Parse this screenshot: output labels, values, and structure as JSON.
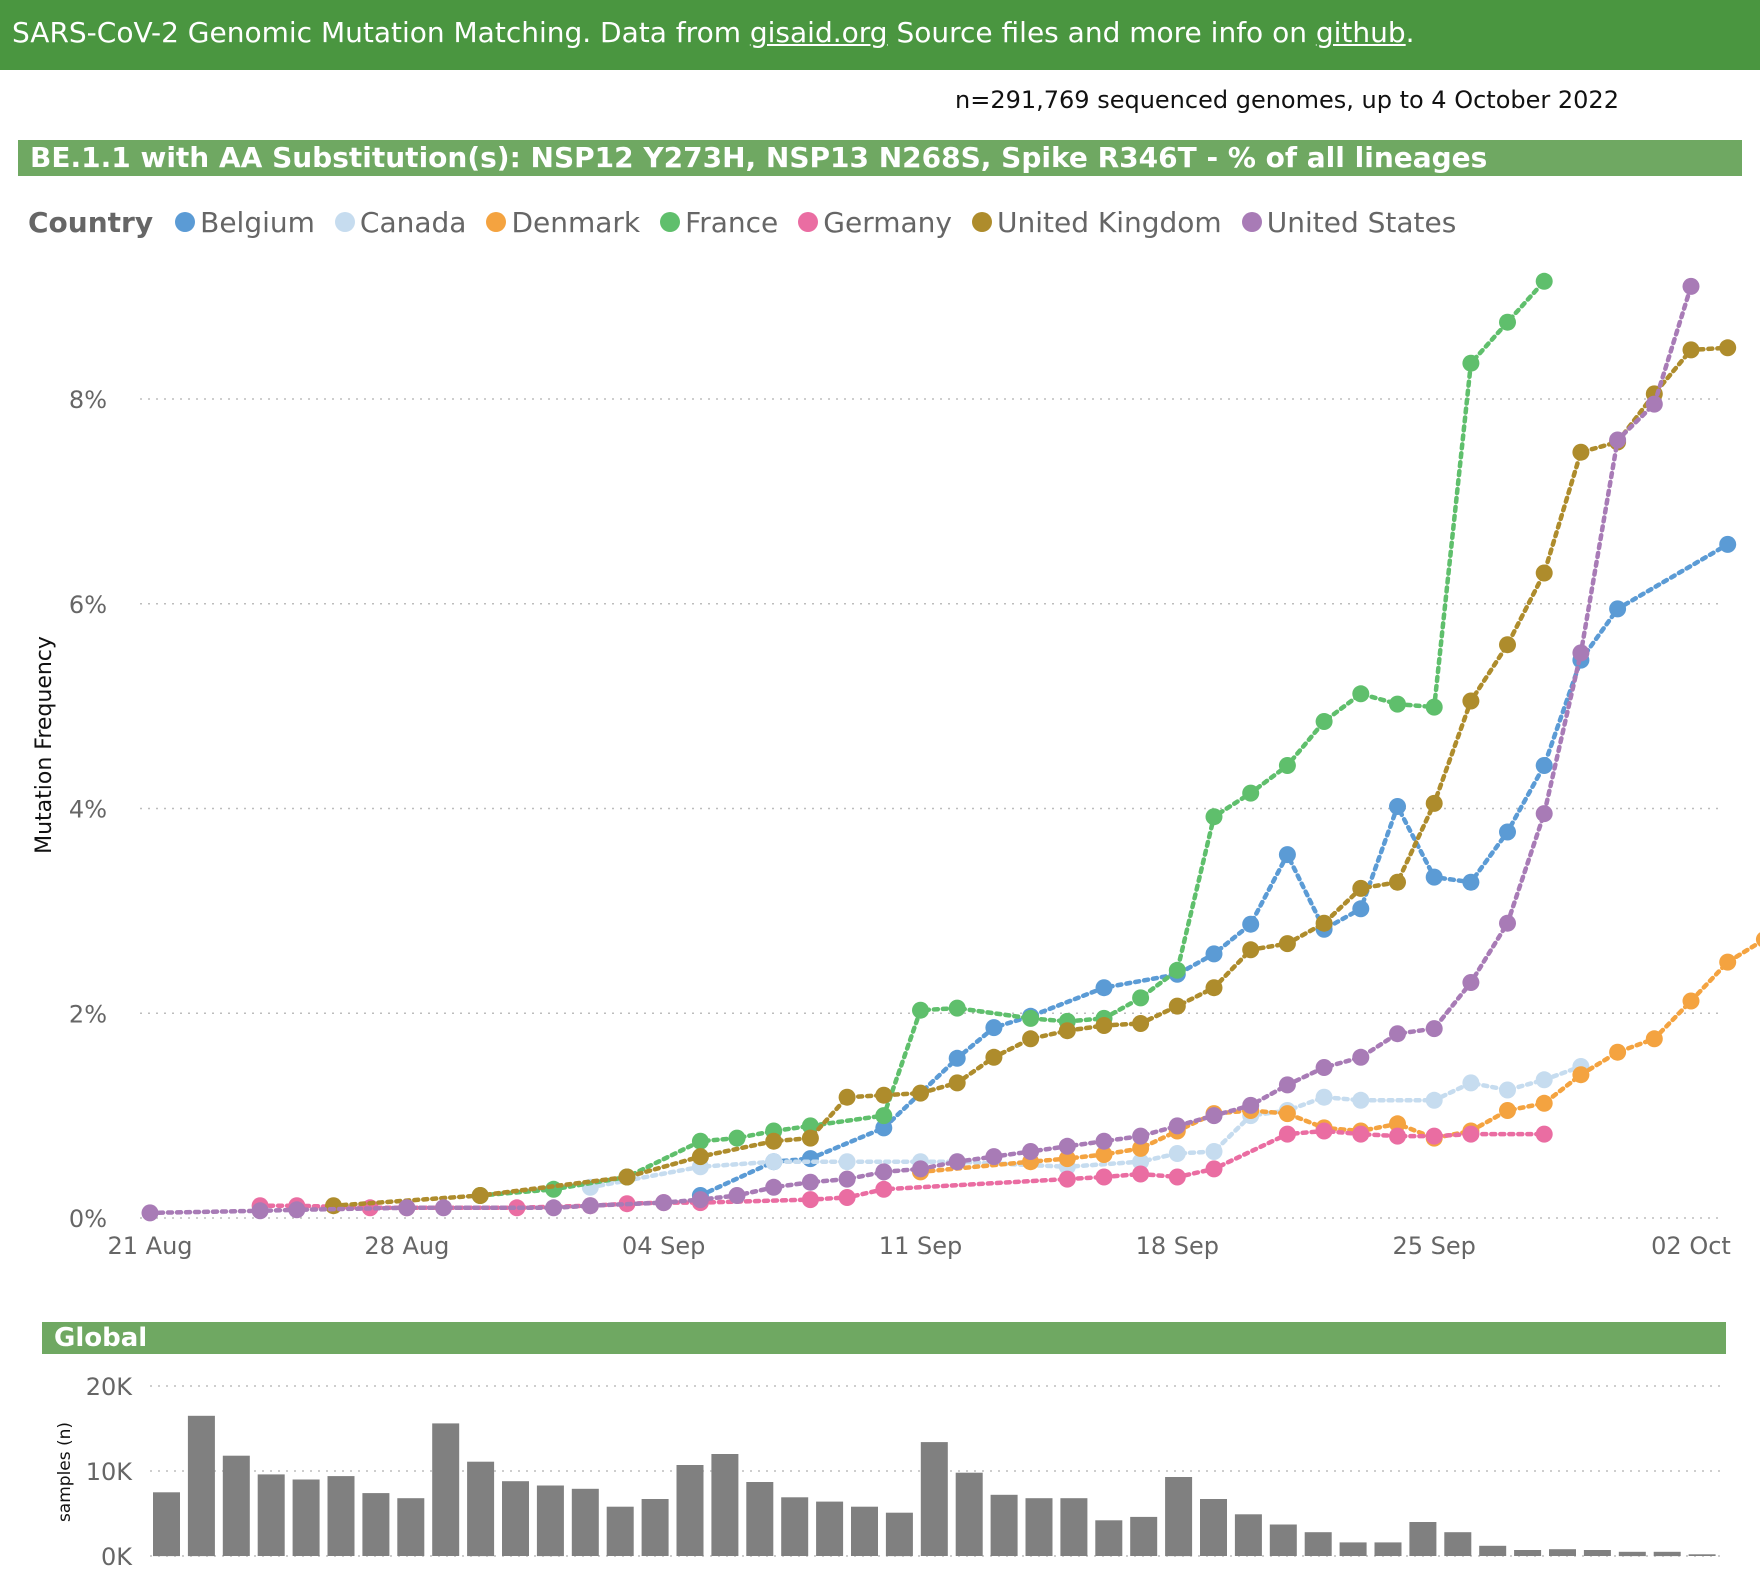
{
  "header": {
    "title_prefix": "SARS-CoV-2 Genomic Mutation Matching. Data from ",
    "gisaid_link": "gisaid.org",
    "title_middle": " Source files and more info on ",
    "github_link": "github",
    "title_suffix": "."
  },
  "summary": "n=291,769 sequenced genomes, up to 4 October 2022",
  "colors": {
    "header_bg": "#4a9640",
    "band_bg": "#6fa862",
    "bar": "#808080"
  },
  "chart_data": [
    {
      "type": "line",
      "title": "BE.1.1 with AA Substitution(s): NSP12 Y273H, NSP13 N268S, Spike R346T - % of all lineages",
      "legend_title": "Country",
      "legend_placement": "top-left",
      "ylabel": "Mutation Frequency",
      "yticks": [
        "0%",
        "2%",
        "4%",
        "6%",
        "8%"
      ],
      "ytick_values": [
        0,
        2,
        4,
        6,
        8
      ],
      "ylim": [
        0,
        9.5
      ],
      "xlim": [
        0,
        44
      ],
      "x_origin_date": "21 Aug",
      "xticks": [
        {
          "x": 0,
          "label": "21 Aug"
        },
        {
          "x": 7,
          "label": "28 Aug"
        },
        {
          "x": 14,
          "label": "04 Sep"
        },
        {
          "x": 21,
          "label": "11 Sep"
        },
        {
          "x": 28,
          "label": "18 Sep"
        },
        {
          "x": 35,
          "label": "25 Sep"
        },
        {
          "x": 42,
          "label": "02 Oct"
        }
      ],
      "series": [
        {
          "name": "Belgium",
          "color": "#5b9bd5",
          "x": [
            15,
            17,
            18,
            20,
            22,
            23,
            24,
            26,
            28,
            29,
            30,
            31,
            32,
            33,
            34,
            35,
            36,
            37,
            38,
            39,
            40,
            43
          ],
          "y": [
            0.22,
            0.55,
            0.58,
            0.88,
            1.56,
            1.86,
            1.97,
            2.25,
            2.38,
            2.58,
            2.87,
            3.55,
            2.82,
            3.02,
            4.02,
            3.33,
            3.28,
            3.77,
            4.42,
            5.45,
            5.95,
            6.58
          ]
        },
        {
          "name": "Canada",
          "color": "#c6dcef",
          "x": [
            12,
            15,
            17,
            19,
            21,
            22,
            25,
            27,
            28,
            29,
            30,
            31,
            32,
            33,
            35,
            36,
            37,
            38,
            39
          ],
          "y": [
            0.3,
            0.5,
            0.55,
            0.55,
            0.55,
            0.55,
            0.5,
            0.55,
            0.63,
            0.65,
            1.0,
            1.05,
            1.18,
            1.15,
            1.15,
            1.32,
            1.25,
            1.35,
            1.48
          ]
        },
        {
          "name": "Denmark",
          "color": "#f4a340",
          "x": [
            21,
            24,
            25,
            26,
            27,
            28,
            29,
            30,
            31,
            32,
            33,
            34,
            35,
            36,
            37,
            38,
            39,
            40,
            41,
            42,
            43,
            44
          ],
          "y": [
            0.45,
            0.55,
            0.58,
            0.62,
            0.68,
            0.85,
            1.02,
            1.05,
            1.02,
            0.88,
            0.85,
            0.92,
            0.78,
            0.85,
            1.05,
            1.12,
            1.4,
            1.62,
            1.75,
            2.12,
            2.5,
            2.72
          ]
        },
        {
          "name": "France",
          "color": "#5fbf6c",
          "x": [
            9,
            11,
            13,
            15,
            16,
            17,
            18,
            20,
            21,
            22,
            24,
            25,
            26,
            27,
            28,
            29,
            30,
            31,
            32,
            33,
            34,
            35,
            36,
            37,
            38
          ],
          "y": [
            0.22,
            0.28,
            0.4,
            0.75,
            0.78,
            0.85,
            0.9,
            1.0,
            2.03,
            2.05,
            1.95,
            1.92,
            1.95,
            2.15,
            2.42,
            3.92,
            4.15,
            4.42,
            4.85,
            5.12,
            5.02,
            4.99,
            8.35,
            8.75,
            9.15
          ]
        },
        {
          "name": "Germany",
          "color": "#ea6da2",
          "x": [
            3,
            4,
            6,
            7,
            10,
            12,
            13,
            14,
            15,
            18,
            19,
            20,
            25,
            26,
            27,
            28,
            29,
            31,
            32,
            33,
            34,
            35,
            36,
            38
          ],
          "y": [
            0.12,
            0.12,
            0.1,
            0.1,
            0.1,
            0.12,
            0.14,
            0.15,
            0.15,
            0.18,
            0.2,
            0.28,
            0.38,
            0.4,
            0.43,
            0.4,
            0.48,
            0.82,
            0.85,
            0.82,
            0.8,
            0.8,
            0.82,
            0.82
          ]
        },
        {
          "name": "United Kingdom",
          "color": "#ae8c2c",
          "x": [
            5,
            9,
            13,
            15,
            17,
            18,
            19,
            20,
            21,
            22,
            23,
            24,
            25,
            26,
            27,
            28,
            29,
            30,
            31,
            32,
            33,
            34,
            35,
            36,
            37,
            38,
            39,
            40,
            41,
            42,
            43
          ],
          "y": [
            0.12,
            0.22,
            0.4,
            0.6,
            0.75,
            0.78,
            1.18,
            1.2,
            1.22,
            1.32,
            1.57,
            1.75,
            1.83,
            1.88,
            1.9,
            2.07,
            2.25,
            2.62,
            2.68,
            2.88,
            3.22,
            3.28,
            4.05,
            5.05,
            5.6,
            6.3,
            7.48,
            7.58,
            8.05,
            8.48,
            8.5
          ]
        },
        {
          "name": "United States",
          "color": "#a87bb6",
          "x": [
            0,
            3,
            4,
            7,
            8,
            11,
            12,
            14,
            15,
            16,
            17,
            18,
            19,
            20,
            21,
            22,
            23,
            24,
            25,
            26,
            27,
            28,
            29,
            30,
            31,
            32,
            33,
            34,
            35,
            36,
            37,
            38,
            39,
            40,
            41,
            42
          ],
          "y": [
            0.05,
            0.07,
            0.08,
            0.1,
            0.1,
            0.1,
            0.12,
            0.15,
            0.18,
            0.22,
            0.3,
            0.35,
            0.38,
            0.45,
            0.48,
            0.55,
            0.6,
            0.65,
            0.7,
            0.75,
            0.8,
            0.9,
            1.0,
            1.1,
            1.3,
            1.47,
            1.57,
            1.8,
            1.85,
            2.3,
            2.88,
            3.95,
            5.52,
            7.6,
            7.95,
            9.1
          ]
        }
      ]
    },
    {
      "type": "bar",
      "title": "Global",
      "ylabel": "samples (n)",
      "yticks": [
        "0K",
        "10K",
        "20K"
      ],
      "ytick_values": [
        0,
        10000,
        20000
      ],
      "ylim": [
        0,
        20000
      ],
      "values": [
        7500,
        16500,
        11800,
        9600,
        9000,
        9400,
        7400,
        6800,
        15600,
        11100,
        8800,
        8300,
        7900,
        5800,
        6700,
        10700,
        12000,
        8700,
        6900,
        6400,
        5800,
        5100,
        13400,
        9800,
        7200,
        6800,
        6800,
        4200,
        4600,
        9300,
        6700,
        4900,
        3700,
        2800,
        1600,
        1600,
        4000,
        2800,
        1200,
        700,
        800,
        700,
        500,
        500,
        200
      ]
    }
  ]
}
